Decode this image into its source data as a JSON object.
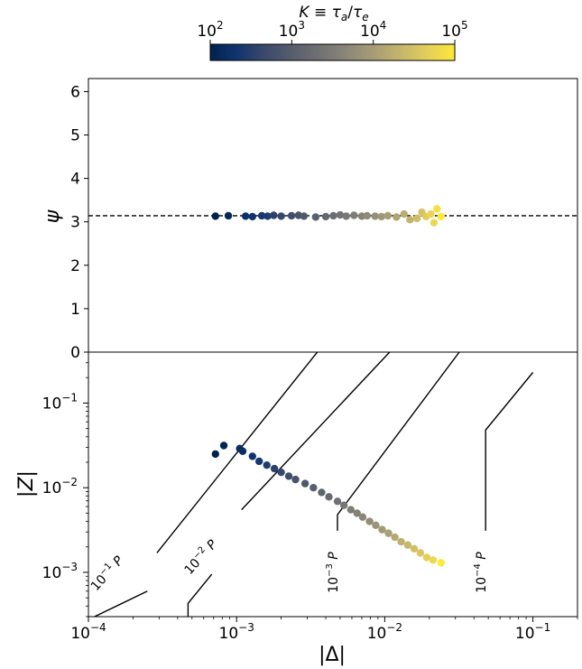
{
  "chart_data": [
    {
      "type": "colorbar",
      "label": "K ≡ τ_a/τ_e",
      "scale": "log",
      "range": [
        100,
        100000
      ],
      "ticks": [
        {
          "base": "10",
          "exp": "2"
        },
        {
          "base": "10",
          "exp": "3"
        },
        {
          "base": "10",
          "exp": "4"
        },
        {
          "base": "10",
          "exp": "5"
        }
      ],
      "colormap": [
        "#00224e",
        "#123570",
        "#3b496c",
        "#575d6d",
        "#707173",
        "#8a8678",
        "#a69d75",
        "#c4b56c",
        "#e4cf5b",
        "#fee838"
      ]
    },
    {
      "type": "scatter",
      "ylabel": "ψ",
      "ylim": [
        0,
        6.3
      ],
      "yticks": [
        "0",
        "1",
        "2",
        "3",
        "4",
        "5",
        "6"
      ],
      "xscale": "log",
      "xlim": [
        0.0001,
        0.2
      ],
      "reference_line": {
        "y": 3.14159,
        "style": "dashed"
      },
      "points": [
        {
          "x": 0.00072,
          "y": 3.13,
          "c": 0.0
        },
        {
          "x": 0.00088,
          "y": 3.14,
          "c": 0.03
        },
        {
          "x": 0.00115,
          "y": 3.13,
          "c": 0.07
        },
        {
          "x": 0.00128,
          "y": 3.12,
          "c": 0.1
        },
        {
          "x": 0.00148,
          "y": 3.14,
          "c": 0.13
        },
        {
          "x": 0.00162,
          "y": 3.13,
          "c": 0.15
        },
        {
          "x": 0.00178,
          "y": 3.15,
          "c": 0.18
        },
        {
          "x": 0.002,
          "y": 3.13,
          "c": 0.21
        },
        {
          "x": 0.00235,
          "y": 3.14,
          "c": 0.25
        },
        {
          "x": 0.00262,
          "y": 3.15,
          "c": 0.28
        },
        {
          "x": 0.00285,
          "y": 3.13,
          "c": 0.31
        },
        {
          "x": 0.00342,
          "y": 3.11,
          "c": 0.35
        },
        {
          "x": 0.004,
          "y": 3.12,
          "c": 0.39
        },
        {
          "x": 0.0045,
          "y": 3.14,
          "c": 0.42
        },
        {
          "x": 0.005,
          "y": 3.16,
          "c": 0.45
        },
        {
          "x": 0.0055,
          "y": 3.13,
          "c": 0.48
        },
        {
          "x": 0.0062,
          "y": 3.15,
          "c": 0.51
        },
        {
          "x": 0.007,
          "y": 3.13,
          "c": 0.54
        },
        {
          "x": 0.0076,
          "y": 3.14,
          "c": 0.57
        },
        {
          "x": 0.0086,
          "y": 3.13,
          "c": 0.6
        },
        {
          "x": 0.0095,
          "y": 3.12,
          "c": 0.64
        },
        {
          "x": 0.0105,
          "y": 3.14,
          "c": 0.67
        },
        {
          "x": 0.012,
          "y": 3.11,
          "c": 0.7
        },
        {
          "x": 0.0135,
          "y": 3.18,
          "c": 0.74
        },
        {
          "x": 0.0148,
          "y": 3.05,
          "c": 0.77
        },
        {
          "x": 0.0165,
          "y": 3.08,
          "c": 0.81
        },
        {
          "x": 0.0178,
          "y": 3.22,
          "c": 0.84
        },
        {
          "x": 0.019,
          "y": 3.12,
          "c": 0.88
        },
        {
          "x": 0.0205,
          "y": 3.18,
          "c": 0.91
        },
        {
          "x": 0.0215,
          "y": 2.98,
          "c": 0.93
        },
        {
          "x": 0.0225,
          "y": 3.3,
          "c": 0.96
        },
        {
          "x": 0.024,
          "y": 3.12,
          "c": 1.0
        }
      ]
    },
    {
      "type": "scatter",
      "xlabel": "|Δ|",
      "ylabel": "|𝒵|",
      "xscale": "log",
      "yscale": "log",
      "xlim": [
        0.0001,
        0.2
      ],
      "ylim": [
        0.0003,
        0.4
      ],
      "xticks": [
        {
          "base": "10",
          "exp": "−4"
        },
        {
          "base": "10",
          "exp": "−3"
        },
        {
          "base": "10",
          "exp": "−2"
        },
        {
          "base": "10",
          "exp": "−1"
        }
      ],
      "yticks": [
        {
          "base": "10",
          "exp": "−3"
        },
        {
          "base": "10",
          "exp": "−2"
        },
        {
          "base": "10",
          "exp": "−1"
        }
      ],
      "period_lines": [
        {
          "label": "10",
          "exp": "−1",
          "unit": "P",
          "points": [
            [
              0.00011,
              0.0003
            ],
            [
              0.00025,
              0.0006
            ]
          ],
          "points2": [
            [
              0.00029,
              0.0017
            ],
            [
              0.0037,
              0.45
            ]
          ],
          "label_at": [
            0.00014,
            0.0009
          ]
        },
        {
          "label": "10",
          "exp": "−2",
          "unit": "P",
          "points": [
            [
              0.00047,
              0.0003
            ],
            [
              0.00047,
              0.00043
            ],
            [
              0.00068,
              0.00095
            ]
          ],
          "points2": [
            [
              0.00108,
              0.0055
            ],
            [
              0.0115,
              0.45
            ]
          ],
          "label_at": [
            0.0006,
            0.0014
          ]
        },
        {
          "label": "10",
          "exp": "−3",
          "unit": "P",
          "points": [
            [
              0.0048,
              0.0031
            ],
            [
              0.0048,
              0.0048
            ],
            [
              0.0335,
              0.45
            ]
          ],
          "label_at": [
            0.0048,
            0.001
          ]
        },
        {
          "label": "10",
          "exp": "−4",
          "unit": "P",
          "points": [
            [
              0.048,
              0.0031
            ],
            [
              0.048,
              0.048
            ],
            [
              0.1,
              0.23
            ]
          ],
          "label_at": [
            0.048,
            0.001
          ]
        }
      ],
      "points": [
        {
          "x": 0.00072,
          "y": 0.025,
          "c": 0.0
        },
        {
          "x": 0.00082,
          "y": 0.0315,
          "c": 0.02
        },
        {
          "x": 0.00105,
          "y": 0.029,
          "c": 0.06
        },
        {
          "x": 0.0011,
          "y": 0.027,
          "c": 0.07
        },
        {
          "x": 0.00128,
          "y": 0.0235,
          "c": 0.1
        },
        {
          "x": 0.00142,
          "y": 0.0205,
          "c": 0.12
        },
        {
          "x": 0.0016,
          "y": 0.0185,
          "c": 0.15
        },
        {
          "x": 0.0018,
          "y": 0.0168,
          "c": 0.18
        },
        {
          "x": 0.002,
          "y": 0.0152,
          "c": 0.21
        },
        {
          "x": 0.00225,
          "y": 0.0137,
          "c": 0.24
        },
        {
          "x": 0.0025,
          "y": 0.0125,
          "c": 0.27
        },
        {
          "x": 0.0029,
          "y": 0.0112,
          "c": 0.3
        },
        {
          "x": 0.0033,
          "y": 0.01,
          "c": 0.34
        },
        {
          "x": 0.00375,
          "y": 0.0088,
          "c": 0.37
        },
        {
          "x": 0.0042,
          "y": 0.0078,
          "c": 0.4
        },
        {
          "x": 0.0048,
          "y": 0.0069,
          "c": 0.44
        },
        {
          "x": 0.0053,
          "y": 0.0062,
          "c": 0.47
        },
        {
          "x": 0.0059,
          "y": 0.0055,
          "c": 0.5
        },
        {
          "x": 0.0065,
          "y": 0.005,
          "c": 0.53
        },
        {
          "x": 0.0071,
          "y": 0.0045,
          "c": 0.56
        },
        {
          "x": 0.0079,
          "y": 0.004,
          "c": 0.59
        },
        {
          "x": 0.0087,
          "y": 0.0036,
          "c": 0.62
        },
        {
          "x": 0.0096,
          "y": 0.0032,
          "c": 0.65
        },
        {
          "x": 0.0106,
          "y": 0.0029,
          "c": 0.68
        },
        {
          "x": 0.0117,
          "y": 0.0026,
          "c": 0.72
        },
        {
          "x": 0.0129,
          "y": 0.0023,
          "c": 0.75
        },
        {
          "x": 0.0143,
          "y": 0.0021,
          "c": 0.78
        },
        {
          "x": 0.0158,
          "y": 0.0019,
          "c": 0.82
        },
        {
          "x": 0.0174,
          "y": 0.0017,
          "c": 0.85
        },
        {
          "x": 0.0192,
          "y": 0.0015,
          "c": 0.89
        },
        {
          "x": 0.0212,
          "y": 0.0014,
          "c": 0.93
        },
        {
          "x": 0.024,
          "y": 0.0013,
          "c": 1.0
        }
      ]
    }
  ]
}
